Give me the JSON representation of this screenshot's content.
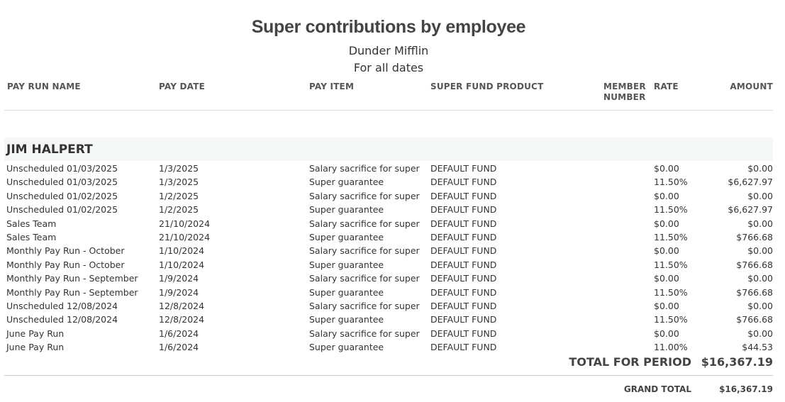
{
  "report": {
    "title": "Super contributions by employee",
    "company": "Dunder Mifflin",
    "period": "For all dates"
  },
  "columns": {
    "pay_run_name": "PAY RUN NAME",
    "pay_date": "PAY DATE",
    "pay_item": "PAY ITEM",
    "super_fund_product": "SUPER FUND PRODUCT",
    "member_number_1": "MEMBER",
    "member_number_2": "NUMBER",
    "rate": "RATE",
    "amount": "AMOUNT"
  },
  "employee": {
    "name": "JIM HALPERT",
    "rows": [
      {
        "pay_run": "Unscheduled 01/03/2025",
        "date": "1/3/2025",
        "item": "Salary sacrifice for super",
        "fund": "DEFAULT FUND",
        "rate": "$0.00",
        "amount": "$0.00"
      },
      {
        "pay_run": "Unscheduled 01/03/2025",
        "date": "1/3/2025",
        "item": "Super guarantee",
        "fund": "DEFAULT FUND",
        "rate": "11.50%",
        "amount": "$6,627.97"
      },
      {
        "pay_run": "Unscheduled 01/02/2025",
        "date": "1/2/2025",
        "item": "Salary sacrifice for super",
        "fund": "DEFAULT FUND",
        "rate": "$0.00",
        "amount": "$0.00"
      },
      {
        "pay_run": "Unscheduled 01/02/2025",
        "date": "1/2/2025",
        "item": "Super guarantee",
        "fund": "DEFAULT FUND",
        "rate": "11.50%",
        "amount": "$6,627.97"
      },
      {
        "pay_run": "Sales Team",
        "date": "21/10/2024",
        "item": "Salary sacrifice for super",
        "fund": "DEFAULT FUND",
        "rate": "$0.00",
        "amount": "$0.00"
      },
      {
        "pay_run": "Sales Team",
        "date": "21/10/2024",
        "item": "Super guarantee",
        "fund": "DEFAULT FUND",
        "rate": "11.50%",
        "amount": "$766.68"
      },
      {
        "pay_run": "Monthly Pay Run - October",
        "date": "1/10/2024",
        "item": "Salary sacrifice for super",
        "fund": "DEFAULT FUND",
        "rate": "$0.00",
        "amount": "$0.00"
      },
      {
        "pay_run": "Monthly Pay Run - October",
        "date": "1/10/2024",
        "item": "Super guarantee",
        "fund": "DEFAULT FUND",
        "rate": "11.50%",
        "amount": "$766.68"
      },
      {
        "pay_run": "Monthly Pay Run - September",
        "date": "1/9/2024",
        "item": "Salary sacrifice for super",
        "fund": "DEFAULT FUND",
        "rate": "$0.00",
        "amount": "$0.00"
      },
      {
        "pay_run": "Monthly Pay Run - September",
        "date": "1/9/2024",
        "item": "Super guarantee",
        "fund": "DEFAULT FUND",
        "rate": "11.50%",
        "amount": "$766.68"
      },
      {
        "pay_run": "Unscheduled 12/08/2024",
        "date": "12/8/2024",
        "item": "Salary sacrifice for super",
        "fund": "DEFAULT FUND",
        "rate": "$0.00",
        "amount": "$0.00"
      },
      {
        "pay_run": "Unscheduled 12/08/2024",
        "date": "12/8/2024",
        "item": "Super guarantee",
        "fund": "DEFAULT FUND",
        "rate": "11.50%",
        "amount": "$766.68"
      },
      {
        "pay_run": "June Pay Run",
        "date": "1/6/2024",
        "item": "Salary sacrifice for super",
        "fund": "DEFAULT FUND",
        "rate": "$0.00",
        "amount": "$0.00"
      },
      {
        "pay_run": "June Pay Run",
        "date": "1/6/2024",
        "item": "Super guarantee",
        "fund": "DEFAULT FUND",
        "rate": "11.00%",
        "amount": "$44.53"
      }
    ],
    "total_label": "TOTAL FOR PERIOD",
    "total_value": "$16,367.19"
  },
  "grand_total": {
    "label": "GRAND TOTAL",
    "value": "$16,367.19"
  }
}
